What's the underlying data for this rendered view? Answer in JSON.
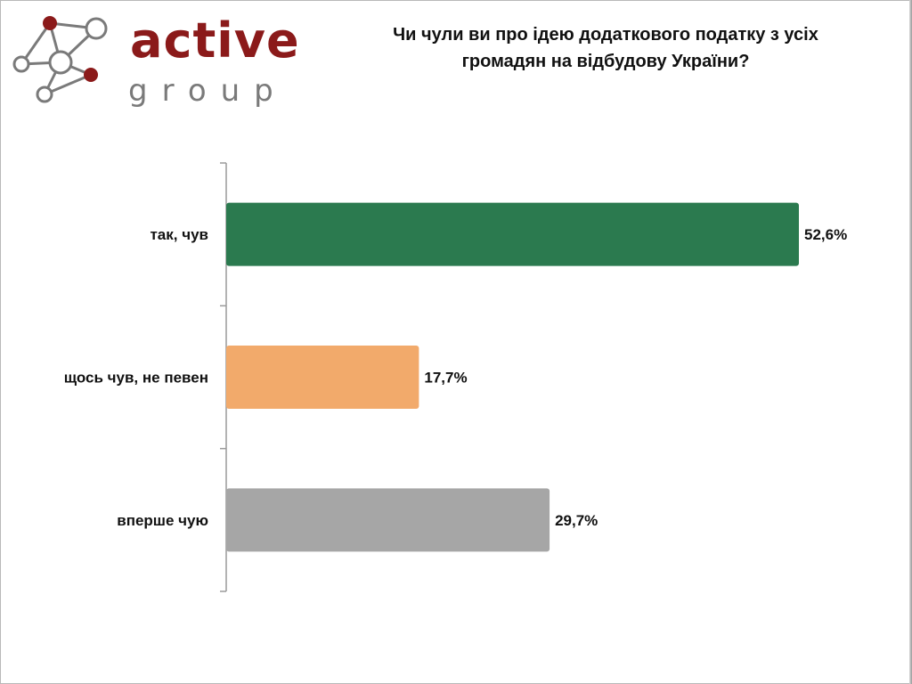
{
  "logo": {
    "word": "active",
    "sub": "group"
  },
  "chart_data": {
    "type": "bar",
    "orientation": "horizontal",
    "title": "Чи чули ви про ідею додаткового податку з усіх громадян на відбудову України?",
    "title_lines": [
      "Чи чули ви про ідею додаткового податку з усіх",
      "громадян на відбудову України?"
    ],
    "categories": [
      "так, чув",
      "щось чув, не певен",
      "вперше чую"
    ],
    "values": [
      52.6,
      17.7,
      29.7
    ],
    "value_labels": [
      "52,6%",
      "17,7%",
      "29,7%"
    ],
    "colors": [
      "#2b7a4f",
      "#f2aa6b",
      "#a6a6a6"
    ],
    "unit": "%",
    "xlim": [
      0,
      100
    ],
    "grid": false,
    "legend": "none"
  }
}
